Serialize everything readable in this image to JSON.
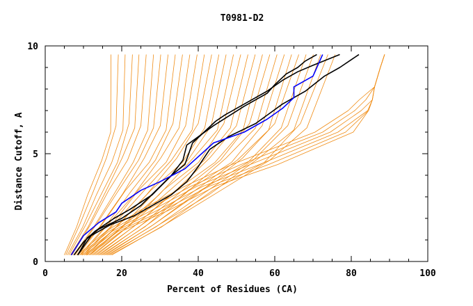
{
  "chart_data": {
    "type": "line",
    "title": "T0981-D2",
    "xlabel": "Percent of Residues (CA)",
    "ylabel": "Distance Cutoff, A",
    "xlim": [
      0,
      100
    ],
    "ylim": [
      0,
      10
    ],
    "x_ticks": [
      "0",
      "20",
      "40",
      "60",
      "80",
      "100"
    ],
    "y_ticks": [
      "0",
      "5",
      "10"
    ],
    "grid": false,
    "colors": {
      "background": "#f08c14",
      "highlight": "#0000ff",
      "reference": "#000000",
      "axis": "#000000"
    },
    "series": [
      {
        "role": "highlight",
        "color": "#0000ff",
        "x": [
          6.8,
          10,
          14,
          18.5,
          20,
          25,
          30,
          36.5,
          44,
          52,
          58,
          62,
          65,
          65,
          70,
          72.5
        ],
        "y": [
          0.3,
          1.2,
          1.8,
          2.3,
          2.7,
          3.3,
          3.7,
          4.3,
          5.5,
          6.0,
          6.6,
          7.1,
          7.6,
          8.1,
          8.6,
          9.6
        ]
      },
      {
        "role": "reference",
        "color": "#000000",
        "x": [
          7.5,
          10,
          13,
          18,
          22,
          28,
          33,
          36.5,
          38.5,
          41.5,
          44.5,
          47,
          52,
          58,
          62,
          66,
          70,
          77
        ],
        "y": [
          0.3,
          0.9,
          1.4,
          2.0,
          2.4,
          3.1,
          4.0,
          4.5,
          5.5,
          6.0,
          6.5,
          6.8,
          7.3,
          7.9,
          8.4,
          8.8,
          9.1,
          9.6
        ]
      },
      {
        "role": "reference",
        "color": "#000000",
        "x": [
          8.5,
          11,
          14,
          20,
          25,
          29,
          33,
          36,
          37,
          44,
          52,
          58,
          60,
          63,
          66,
          68,
          71
        ],
        "y": [
          0.3,
          1.1,
          1.5,
          2.0,
          2.6,
          3.3,
          4.0,
          4.7,
          5.4,
          6.3,
          7.2,
          7.8,
          8.2,
          8.7,
          9.0,
          9.3,
          9.6
        ]
      },
      {
        "role": "reference",
        "color": "#000000",
        "x": [
          8.5,
          12,
          17,
          23,
          28,
          33,
          37,
          40,
          43,
          48,
          55,
          62,
          68,
          73,
          77,
          82
        ],
        "y": [
          0.3,
          1.2,
          1.7,
          2.1,
          2.6,
          3.1,
          3.7,
          4.4,
          5.2,
          5.8,
          6.4,
          7.3,
          7.9,
          8.6,
          9.0,
          9.6
        ]
      },
      {
        "role": "background",
        "color": "#f08c14",
        "x": [
          5.0,
          8.2,
          11.1,
          14.8,
          17.1,
          17.2
        ],
        "y": [
          0.3,
          1.6,
          3.1,
          4.7,
          6.0,
          9.6
        ]
      },
      {
        "role": "background",
        "color": "#f08c14",
        "x": [
          5.4,
          9.0,
          12.7,
          16.0,
          18.5,
          19.1
        ],
        "y": [
          0.3,
          1.7,
          3.3,
          4.8,
          6.3,
          9.6
        ]
      },
      {
        "role": "background",
        "color": "#f08c14",
        "x": [
          5.8,
          9.8,
          13.4,
          17.4,
          20.3,
          20.9
        ],
        "y": [
          0.3,
          1.6,
          3.1,
          4.6,
          6.1,
          9.6
        ]
      },
      {
        "role": "background",
        "color": "#f08c14",
        "x": [
          6.2,
          10.6,
          14.6,
          18.9,
          21.9,
          22.8
        ],
        "y": [
          0.3,
          1.7,
          3.1,
          4.6,
          6.4,
          9.6
        ]
      },
      {
        "role": "background",
        "color": "#f08c14",
        "x": [
          6.6,
          11.2,
          15.7,
          20.1,
          23.4,
          24.5
        ],
        "y": [
          0.3,
          1.6,
          3.2,
          4.8,
          6.2,
          9.6
        ]
      },
      {
        "role": "background",
        "color": "#f08c14",
        "x": [
          7.0,
          11.8,
          16.6,
          21.5,
          25.0,
          26.4
        ],
        "y": [
          0.3,
          1.7,
          3.3,
          4.7,
          6.3,
          9.6
        ]
      },
      {
        "role": "background",
        "color": "#f08c14",
        "x": [
          7.4,
          12.7,
          17.9,
          23.0,
          26.8,
          28.3
        ],
        "y": [
          0.3,
          1.6,
          3.1,
          4.6,
          6.1,
          9.6
        ]
      },
      {
        "role": "background",
        "color": "#f08c14",
        "x": [
          7.8,
          13.3,
          18.8,
          24.4,
          28.3,
          30.2
        ],
        "y": [
          0.3,
          1.7,
          3.2,
          4.7,
          6.2,
          9.6
        ]
      },
      {
        "role": "background",
        "color": "#f08c14",
        "x": [
          8.2,
          14.2,
          20.1,
          25.9,
          30.1,
          32.1
        ],
        "y": [
          0.3,
          1.6,
          3.1,
          4.8,
          6.3,
          9.6
        ]
      },
      {
        "role": "background",
        "color": "#f08c14",
        "x": [
          8.6,
          14.8,
          21.0,
          27.2,
          31.6,
          34.0
        ],
        "y": [
          0.3,
          1.7,
          3.3,
          4.6,
          6.1,
          9.6
        ]
      },
      {
        "role": "background",
        "color": "#f08c14",
        "x": [
          9.0,
          15.6,
          22.2,
          28.8,
          33.4,
          35.9
        ],
        "y": [
          0.3,
          1.6,
          3.2,
          4.7,
          6.4,
          9.6
        ]
      },
      {
        "role": "background",
        "color": "#f08c14",
        "x": [
          9.4,
          16.3,
          23.2,
          30.2,
          35.0,
          37.8
        ],
        "y": [
          0.3,
          1.7,
          3.1,
          4.8,
          6.2,
          9.6
        ]
      },
      {
        "role": "background",
        "color": "#f08c14",
        "x": [
          9.8,
          17.0,
          24.3,
          31.6,
          36.7,
          39.7
        ],
        "y": [
          0.3,
          1.6,
          3.3,
          4.6,
          6.3,
          9.6
        ]
      },
      {
        "role": "background",
        "color": "#f08c14",
        "x": [
          10.2,
          17.8,
          25.4,
          33.0,
          38.4,
          41.6
        ],
        "y": [
          0.3,
          1.7,
          3.2,
          4.7,
          6.1,
          9.6
        ]
      },
      {
        "role": "background",
        "color": "#f08c14",
        "x": [
          10.6,
          18.5,
          26.5,
          34.4,
          40.0,
          43.5
        ],
        "y": [
          0.3,
          1.6,
          3.1,
          4.8,
          6.4,
          9.6
        ]
      },
      {
        "role": "background",
        "color": "#f08c14",
        "x": [
          11.0,
          19.2,
          27.6,
          35.9,
          41.7,
          45.4
        ],
        "y": [
          0.3,
          1.7,
          3.3,
          4.6,
          6.2,
          9.6
        ]
      },
      {
        "role": "background",
        "color": "#f08c14",
        "x": [
          11.4,
          20.0,
          28.6,
          37.3,
          43.4,
          47.3
        ],
        "y": [
          0.3,
          1.6,
          3.2,
          4.7,
          6.3,
          9.6
        ]
      },
      {
        "role": "background",
        "color": "#f08c14",
        "x": [
          11.8,
          20.8,
          29.8,
          38.7,
          45.0,
          49.2
        ],
        "y": [
          0.3,
          1.7,
          3.1,
          4.8,
          6.1,
          9.6
        ]
      },
      {
        "role": "background",
        "color": "#f08c14",
        "x": [
          12.2,
          21.5,
          30.8,
          40.1,
          46.7,
          51.1
        ],
        "y": [
          0.3,
          1.6,
          3.3,
          4.6,
          6.4,
          9.6
        ]
      },
      {
        "role": "background",
        "color": "#f08c14",
        "x": [
          12.6,
          22.2,
          31.9,
          41.6,
          48.4,
          53.0
        ],
        "y": [
          0.3,
          1.7,
          3.2,
          4.7,
          6.2,
          9.6
        ]
      },
      {
        "role": "background",
        "color": "#f08c14",
        "x": [
          13.0,
          23.0,
          33.0,
          43.0,
          50.0,
          54.9
        ],
        "y": [
          0.3,
          1.6,
          3.1,
          4.8,
          6.3,
          9.6
        ]
      },
      {
        "role": "background",
        "color": "#f08c14",
        "x": [
          13.4,
          23.7,
          34.1,
          44.4,
          51.7,
          56.8
        ],
        "y": [
          0.3,
          1.7,
          3.3,
          4.6,
          6.1,
          9.6
        ]
      },
      {
        "role": "background",
        "color": "#f08c14",
        "x": [
          13.8,
          24.5,
          35.2,
          45.8,
          53.4,
          58.7
        ],
        "y": [
          0.3,
          1.6,
          3.2,
          4.7,
          6.4,
          9.6
        ]
      },
      {
        "role": "background",
        "color": "#f08c14",
        "x": [
          14.2,
          25.2,
          36.3,
          47.3,
          55.0,
          60.6
        ],
        "y": [
          0.3,
          1.7,
          3.1,
          4.8,
          6.2,
          9.6
        ]
      },
      {
        "role": "background",
        "color": "#f08c14",
        "x": [
          14.6,
          26.0,
          37.4,
          48.7,
          56.7,
          62.5
        ],
        "y": [
          0.3,
          1.6,
          3.3,
          4.6,
          6.3,
          9.6
        ]
      },
      {
        "role": "background",
        "color": "#f08c14",
        "x": [
          15.0,
          26.7,
          38.4,
          50.2,
          58.4,
          64.4
        ],
        "y": [
          0.3,
          1.7,
          3.2,
          4.7,
          6.1,
          9.6
        ]
      },
      {
        "role": "background",
        "color": "#f08c14",
        "x": [
          15.4,
          27.4,
          39.5,
          51.6,
          60.0,
          66.3
        ],
        "y": [
          0.3,
          1.6,
          3.1,
          4.8,
          6.4,
          9.6
        ]
      },
      {
        "role": "background",
        "color": "#f08c14",
        "x": [
          15.8,
          28.2,
          40.6,
          53.0,
          61.7,
          68.2
        ],
        "y": [
          0.3,
          1.7,
          3.3,
          4.6,
          6.2,
          9.6
        ]
      },
      {
        "role": "background",
        "color": "#f08c14",
        "x": [
          16.2,
          28.9,
          41.7,
          54.4,
          63.4,
          70.1
        ],
        "y": [
          0.3,
          1.6,
          3.2,
          4.7,
          6.3,
          9.6
        ]
      },
      {
        "role": "background",
        "color": "#f08c14",
        "x": [
          16.6,
          29.7,
          42.8,
          55.9,
          65.0,
          72.0
        ],
        "y": [
          0.3,
          1.7,
          3.1,
          4.8,
          6.1,
          9.6
        ]
      },
      {
        "role": "background",
        "color": "#f08c14",
        "x": [
          17.0,
          30.4,
          43.8,
          57.3,
          66.7,
          73.9
        ],
        "y": [
          0.3,
          1.6,
          3.3,
          4.6,
          6.4,
          9.6
        ]
      },
      {
        "role": "background",
        "color": "#f08c14",
        "x": [
          17.4,
          31.2,
          45.0,
          58.7,
          68.4,
          75.8
        ],
        "y": [
          0.3,
          1.7,
          3.2,
          4.7,
          6.2,
          9.6
        ]
      },
      {
        "role": "background",
        "color": "#f08c14",
        "x": [
          8.4,
          15.9,
          25.1,
          36.6,
          48.8,
          70.5,
          79.2,
          82.1,
          86.1,
          87.6,
          88.7
        ],
        "y": [
          0.3,
          1.4,
          2.4,
          3.5,
          4.5,
          6.0,
          7.0,
          7.5,
          8.1,
          9.0,
          9.6
        ]
      },
      {
        "role": "background",
        "color": "#f08c14",
        "x": [
          9.0,
          16.7,
          26.6,
          38.2,
          51.2,
          72.5,
          80.9,
          83.8,
          86.1,
          87.6,
          88.7
        ],
        "y": [
          0.3,
          1.4,
          2.4,
          3.5,
          4.5,
          6.0,
          7.0,
          7.5,
          8.1,
          9.0,
          9.6
        ]
      },
      {
        "role": "background",
        "color": "#f08c14",
        "x": [
          9.6,
          17.5,
          28.1,
          39.8,
          53.6,
          74.5,
          82.6,
          85.5,
          86.1,
          87.6,
          88.7
        ],
        "y": [
          0.3,
          1.4,
          2.4,
          3.5,
          4.5,
          6.0,
          7.0,
          7.5,
          8.1,
          9.0,
          9.6
        ]
      },
      {
        "role": "background",
        "color": "#f08c14",
        "x": [
          10.2,
          18.3,
          29.6,
          41.4,
          56.0,
          76.5,
          84.3,
          85.5,
          86.1,
          87.6,
          88.7
        ],
        "y": [
          0.3,
          1.4,
          2.4,
          3.5,
          4.5,
          6.0,
          7.0,
          7.5,
          8.1,
          9.0,
          9.6
        ]
      },
      {
        "role": "background",
        "color": "#f08c14",
        "x": [
          10.8,
          19.1,
          31.1,
          43.0,
          58.4,
          78.5,
          84.5,
          85.5,
          86.1,
          87.6,
          88.7
        ],
        "y": [
          0.3,
          1.4,
          2.4,
          3.5,
          4.5,
          6.0,
          7.0,
          7.5,
          8.1,
          9.0,
          9.6
        ]
      },
      {
        "role": "background",
        "color": "#f08c14",
        "x": [
          11.4,
          19.9,
          32.6,
          44.6,
          60.8,
          80.5,
          84.5,
          85.5,
          86.1,
          87.6,
          88.7
        ],
        "y": [
          0.3,
          1.4,
          2.4,
          3.5,
          4.5,
          6.0,
          7.0,
          7.5,
          8.1,
          9.0,
          9.6
        ]
      }
    ]
  }
}
